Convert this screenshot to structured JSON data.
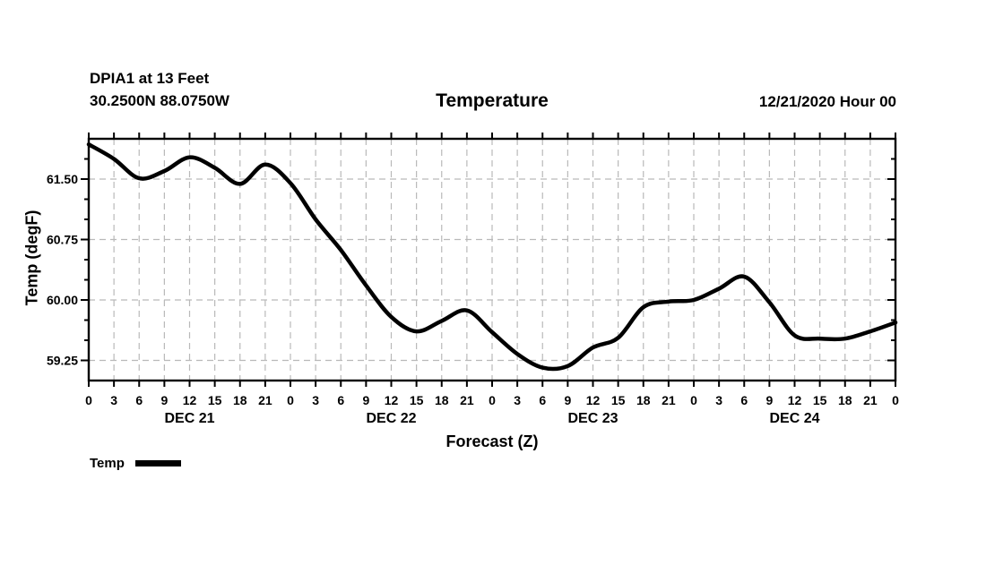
{
  "header": {
    "station_line": "DPIA1 at 13 Feet",
    "coords_line": "30.2500N 88.0750W",
    "run_date": "12/21/2020 Hour 00"
  },
  "legend": {
    "label": "Temp"
  },
  "chart_data": {
    "type": "line",
    "title": "Temperature",
    "xlabel": "Forecast (Z)",
    "ylabel": "Temp (degF)",
    "ylim": [
      59.0,
      62.0
    ],
    "x_total_hours": 96,
    "x_tick_step_hours": 3,
    "x_hour_labels": [
      "0",
      "3",
      "6",
      "9",
      "12",
      "15",
      "18",
      "21",
      "0",
      "3",
      "6",
      "9",
      "12",
      "15",
      "18",
      "21",
      "0",
      "3",
      "6",
      "9",
      "12",
      "15",
      "18",
      "21",
      "0",
      "3",
      "6",
      "9",
      "12",
      "15",
      "18",
      "21",
      "0"
    ],
    "day_labels": [
      {
        "label": "DEC 21",
        "center_hour": 12
      },
      {
        "label": "DEC 22",
        "center_hour": 36
      },
      {
        "label": "DEC 23",
        "center_hour": 60
      },
      {
        "label": "DEC 24",
        "center_hour": 84
      }
    ],
    "y_major_ticks": [
      59.25,
      60.0,
      60.75,
      61.5
    ],
    "y_tick_labels": [
      "59.25",
      "60.00",
      "60.75",
      "61.50"
    ],
    "y_minor_step": 0.25,
    "grid": {
      "style": "dashed",
      "color": "#b9b9b9"
    },
    "line_color": "#000000",
    "series": [
      {
        "name": "Temp",
        "hours": [
          0,
          3,
          6,
          9,
          12,
          15,
          18,
          21,
          24,
          27,
          30,
          33,
          36,
          39,
          42,
          45,
          48,
          51,
          54,
          57,
          60,
          63,
          66,
          69,
          72,
          75,
          78,
          81,
          84,
          87,
          90,
          93,
          96
        ],
        "values": [
          61.93,
          61.75,
          61.51,
          61.6,
          61.77,
          61.64,
          61.44,
          61.68,
          61.45,
          61.0,
          60.62,
          60.18,
          59.79,
          59.61,
          59.74,
          59.87,
          59.6,
          59.33,
          59.16,
          59.18,
          59.41,
          59.53,
          59.91,
          59.98,
          60.0,
          60.14,
          60.29,
          59.97,
          59.56,
          59.52,
          59.52,
          59.61,
          59.72
        ]
      }
    ]
  }
}
